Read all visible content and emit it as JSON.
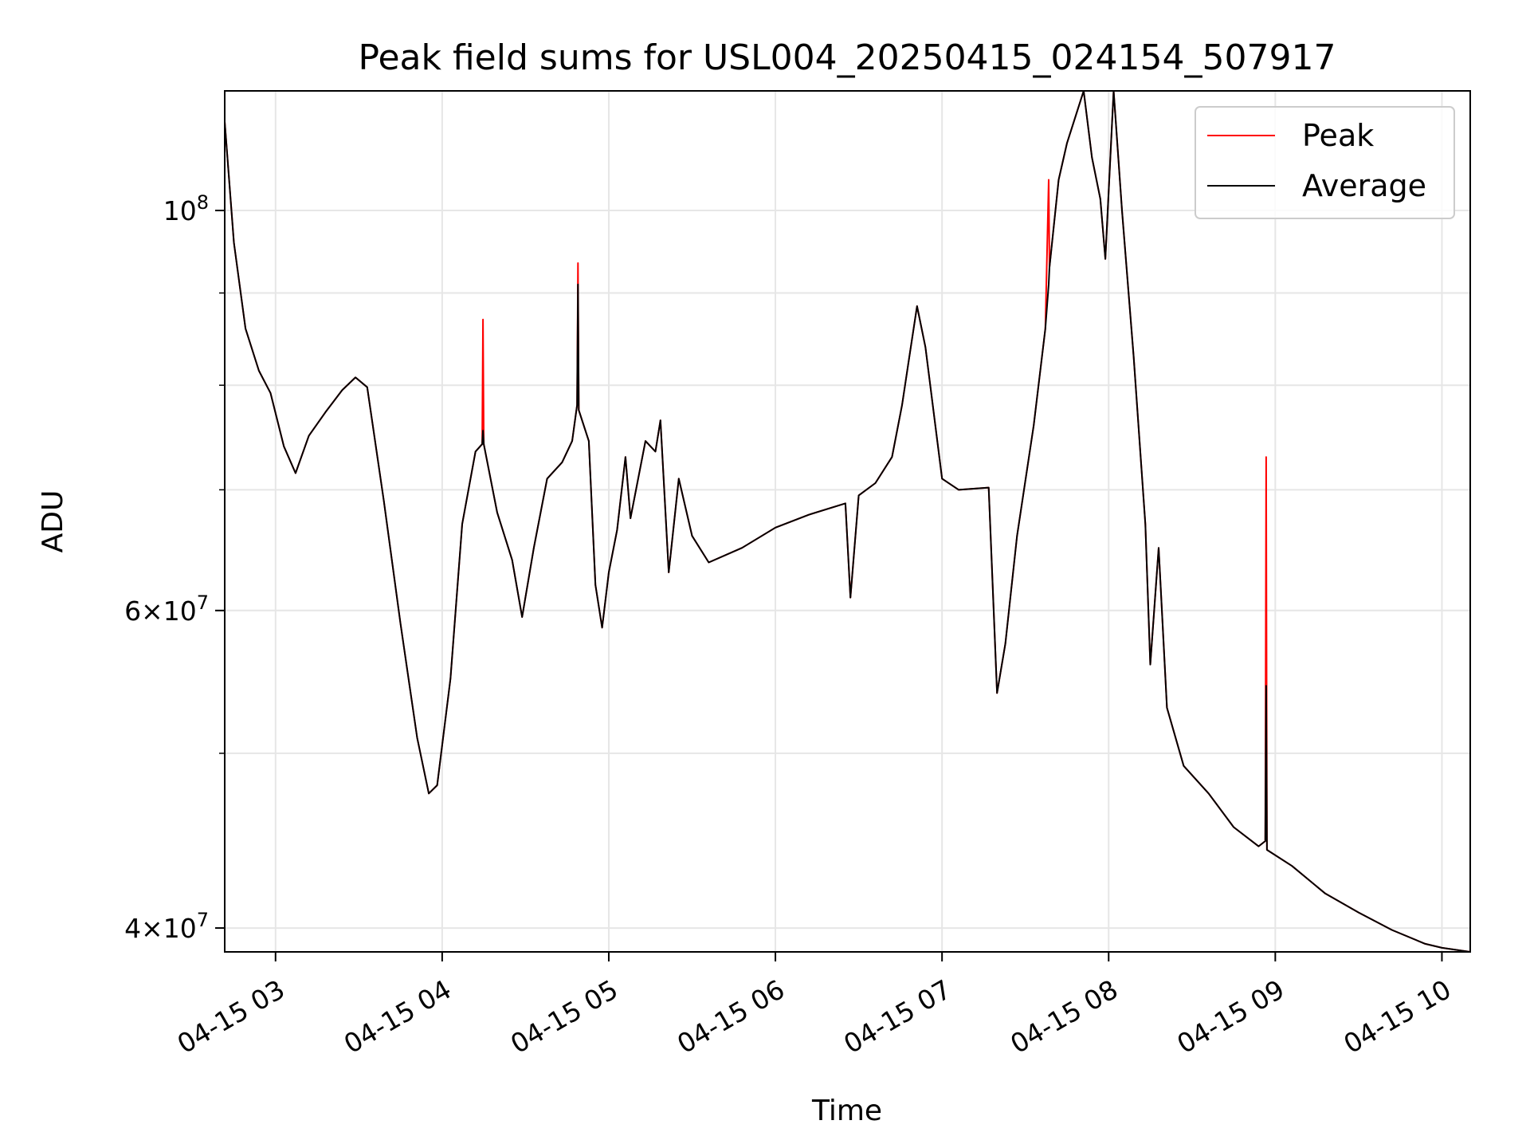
{
  "chart_data": {
    "type": "line",
    "title": "Peak field sums for USL004_20250415_024154_507917",
    "xlabel": "Time",
    "ylabel": "ADU",
    "x_axis": "time",
    "x_unit": "hour of 2025-04-15",
    "xlim": [
      2.695,
      10.17
    ],
    "ylim": [
      38800000,
      116500000
    ],
    "y_scale": "log",
    "grid": true,
    "legend_position": "top-right",
    "x_ticks": [
      {
        "value": 3,
        "label": "04-15 03"
      },
      {
        "value": 4,
        "label": "04-15 04"
      },
      {
        "value": 5,
        "label": "04-15 05"
      },
      {
        "value": 6,
        "label": "04-15 06"
      },
      {
        "value": 7,
        "label": "04-15 07"
      },
      {
        "value": 8,
        "label": "04-15 08"
      },
      {
        "value": 9,
        "label": "04-15 09"
      },
      {
        "value": 10,
        "label": "04-15 10"
      }
    ],
    "y_major_ticks": [
      {
        "value": 100000000,
        "base": "10",
        "exp": "8"
      },
      {
        "value": 60000000,
        "mant": "6",
        "base": "10",
        "exp": "7"
      },
      {
        "value": 40000000,
        "mant": "4",
        "base": "10",
        "exp": "7"
      }
    ],
    "y_minor_ticks": [
      50000000,
      70000000,
      80000000,
      90000000
    ],
    "series": [
      {
        "name": "Peak",
        "color": "#ff0000",
        "points": [
          [
            2.695,
            112000000
          ],
          [
            2.75,
            96000000
          ],
          [
            2.82,
            86000000
          ],
          [
            2.9,
            81500000
          ],
          [
            2.97,
            79200000
          ],
          [
            3.05,
            74000000
          ],
          [
            3.12,
            71500000
          ],
          [
            3.2,
            75000000
          ],
          [
            3.3,
            77300000
          ],
          [
            3.4,
            79500000
          ],
          [
            3.48,
            80800000
          ],
          [
            3.55,
            79800000
          ],
          [
            3.65,
            69000000
          ],
          [
            3.75,
            59000000
          ],
          [
            3.85,
            51000000
          ],
          [
            3.92,
            47500000
          ],
          [
            3.97,
            48000000
          ],
          [
            4.05,
            55000000
          ],
          [
            4.12,
            67000000
          ],
          [
            4.2,
            73500000
          ],
          [
            4.24,
            74200000
          ],
          [
            4.245,
            87000000
          ],
          [
            4.25,
            74200000
          ],
          [
            4.33,
            68000000
          ],
          [
            4.42,
            64000000
          ],
          [
            4.48,
            59500000
          ],
          [
            4.55,
            65000000
          ],
          [
            4.63,
            71000000
          ],
          [
            4.72,
            72500000
          ],
          [
            4.78,
            74500000
          ],
          [
            4.81,
            78000000
          ],
          [
            4.815,
            93500000
          ],
          [
            4.82,
            77500000
          ],
          [
            4.88,
            74500000
          ],
          [
            4.92,
            62000000
          ],
          [
            4.96,
            58700000
          ],
          [
            5.0,
            63000000
          ],
          [
            5.05,
            66500000
          ],
          [
            5.1,
            73000000
          ],
          [
            5.13,
            67500000
          ],
          [
            5.22,
            74500000
          ],
          [
            5.28,
            73500000
          ],
          [
            5.31,
            76500000
          ],
          [
            5.36,
            63000000
          ],
          [
            5.42,
            71000000
          ],
          [
            5.5,
            66000000
          ],
          [
            5.6,
            63800000
          ],
          [
            5.8,
            65000000
          ],
          [
            6.0,
            66700000
          ],
          [
            6.2,
            67800000
          ],
          [
            6.42,
            68800000
          ],
          [
            6.45,
            61000000
          ],
          [
            6.5,
            69500000
          ],
          [
            6.6,
            70600000
          ],
          [
            6.7,
            73000000
          ],
          [
            6.76,
            78000000
          ],
          [
            6.8,
            82500000
          ],
          [
            6.85,
            88500000
          ],
          [
            6.9,
            84000000
          ],
          [
            7.0,
            71000000
          ],
          [
            7.1,
            70000000
          ],
          [
            7.28,
            70200000
          ],
          [
            7.33,
            54000000
          ],
          [
            7.38,
            57500000
          ],
          [
            7.45,
            66000000
          ],
          [
            7.55,
            76000000
          ],
          [
            7.62,
            86000000
          ],
          [
            7.64,
            104000000
          ],
          [
            7.645,
            93000000
          ],
          [
            7.7,
            104000000
          ],
          [
            7.75,
            109000000
          ],
          [
            7.85,
            116500000
          ],
          [
            7.9,
            107000000
          ],
          [
            7.95,
            101500000
          ],
          [
            7.98,
            94000000
          ],
          [
            8.03,
            116500000
          ],
          [
            8.08,
            100000000
          ],
          [
            8.15,
            83000000
          ],
          [
            8.22,
            67000000
          ],
          [
            8.25,
            56000000
          ],
          [
            8.3,
            65000000
          ],
          [
            8.35,
            53000000
          ],
          [
            8.45,
            49200000
          ],
          [
            8.6,
            47500000
          ],
          [
            8.75,
            45500000
          ],
          [
            8.9,
            44400000
          ],
          [
            8.94,
            44700000
          ],
          [
            8.945,
            73000000
          ],
          [
            8.95,
            44200000
          ],
          [
            9.1,
            43300000
          ],
          [
            9.3,
            41800000
          ],
          [
            9.5,
            40800000
          ],
          [
            9.7,
            39900000
          ],
          [
            9.9,
            39200000
          ],
          [
            10.0,
            39000000
          ],
          [
            10.17,
            38800000
          ]
        ]
      },
      {
        "name": "Average",
        "color": "#000000",
        "points": [
          [
            2.695,
            112000000
          ],
          [
            2.75,
            96000000
          ],
          [
            2.82,
            86000000
          ],
          [
            2.9,
            81500000
          ],
          [
            2.97,
            79200000
          ],
          [
            3.05,
            74000000
          ],
          [
            3.12,
            71500000
          ],
          [
            3.2,
            75000000
          ],
          [
            3.3,
            77300000
          ],
          [
            3.4,
            79500000
          ],
          [
            3.48,
            80800000
          ],
          [
            3.55,
            79800000
          ],
          [
            3.65,
            69000000
          ],
          [
            3.75,
            59000000
          ],
          [
            3.85,
            51000000
          ],
          [
            3.92,
            47500000
          ],
          [
            3.97,
            48000000
          ],
          [
            4.05,
            55000000
          ],
          [
            4.12,
            67000000
          ],
          [
            4.2,
            73500000
          ],
          [
            4.24,
            74200000
          ],
          [
            4.245,
            75500000
          ],
          [
            4.25,
            74200000
          ],
          [
            4.33,
            68000000
          ],
          [
            4.42,
            64000000
          ],
          [
            4.48,
            59500000
          ],
          [
            4.55,
            65000000
          ],
          [
            4.63,
            71000000
          ],
          [
            4.72,
            72500000
          ],
          [
            4.78,
            74500000
          ],
          [
            4.81,
            78000000
          ],
          [
            4.815,
            91000000
          ],
          [
            4.82,
            77500000
          ],
          [
            4.88,
            74500000
          ],
          [
            4.92,
            62000000
          ],
          [
            4.96,
            58700000
          ],
          [
            5.0,
            63000000
          ],
          [
            5.05,
            66500000
          ],
          [
            5.1,
            73000000
          ],
          [
            5.13,
            67500000
          ],
          [
            5.22,
            74500000
          ],
          [
            5.28,
            73500000
          ],
          [
            5.31,
            76500000
          ],
          [
            5.36,
            63000000
          ],
          [
            5.42,
            71000000
          ],
          [
            5.5,
            66000000
          ],
          [
            5.6,
            63800000
          ],
          [
            5.8,
            65000000
          ],
          [
            6.0,
            66700000
          ],
          [
            6.2,
            67800000
          ],
          [
            6.42,
            68800000
          ],
          [
            6.45,
            61000000
          ],
          [
            6.5,
            69500000
          ],
          [
            6.6,
            70600000
          ],
          [
            6.7,
            73000000
          ],
          [
            6.76,
            78000000
          ],
          [
            6.8,
            82500000
          ],
          [
            6.85,
            88500000
          ],
          [
            6.9,
            84000000
          ],
          [
            7.0,
            71000000
          ],
          [
            7.1,
            70000000
          ],
          [
            7.28,
            70200000
          ],
          [
            7.33,
            54000000
          ],
          [
            7.38,
            57500000
          ],
          [
            7.45,
            66000000
          ],
          [
            7.55,
            76000000
          ],
          [
            7.62,
            86000000
          ],
          [
            7.64,
            91000000
          ],
          [
            7.645,
            93000000
          ],
          [
            7.7,
            104000000
          ],
          [
            7.75,
            109000000
          ],
          [
            7.85,
            116500000
          ],
          [
            7.9,
            107000000
          ],
          [
            7.95,
            101500000
          ],
          [
            7.98,
            94000000
          ],
          [
            8.03,
            116500000
          ],
          [
            8.08,
            100000000
          ],
          [
            8.15,
            83000000
          ],
          [
            8.22,
            67000000
          ],
          [
            8.25,
            56000000
          ],
          [
            8.3,
            65000000
          ],
          [
            8.35,
            53000000
          ],
          [
            8.45,
            49200000
          ],
          [
            8.6,
            47500000
          ],
          [
            8.75,
            45500000
          ],
          [
            8.9,
            44400000
          ],
          [
            8.94,
            44700000
          ],
          [
            8.945,
            54500000
          ],
          [
            8.95,
            44200000
          ],
          [
            9.1,
            43300000
          ],
          [
            9.3,
            41800000
          ],
          [
            9.5,
            40800000
          ],
          [
            9.7,
            39900000
          ],
          [
            9.9,
            39200000
          ],
          [
            10.0,
            39000000
          ],
          [
            10.17,
            38800000
          ]
        ]
      }
    ]
  }
}
